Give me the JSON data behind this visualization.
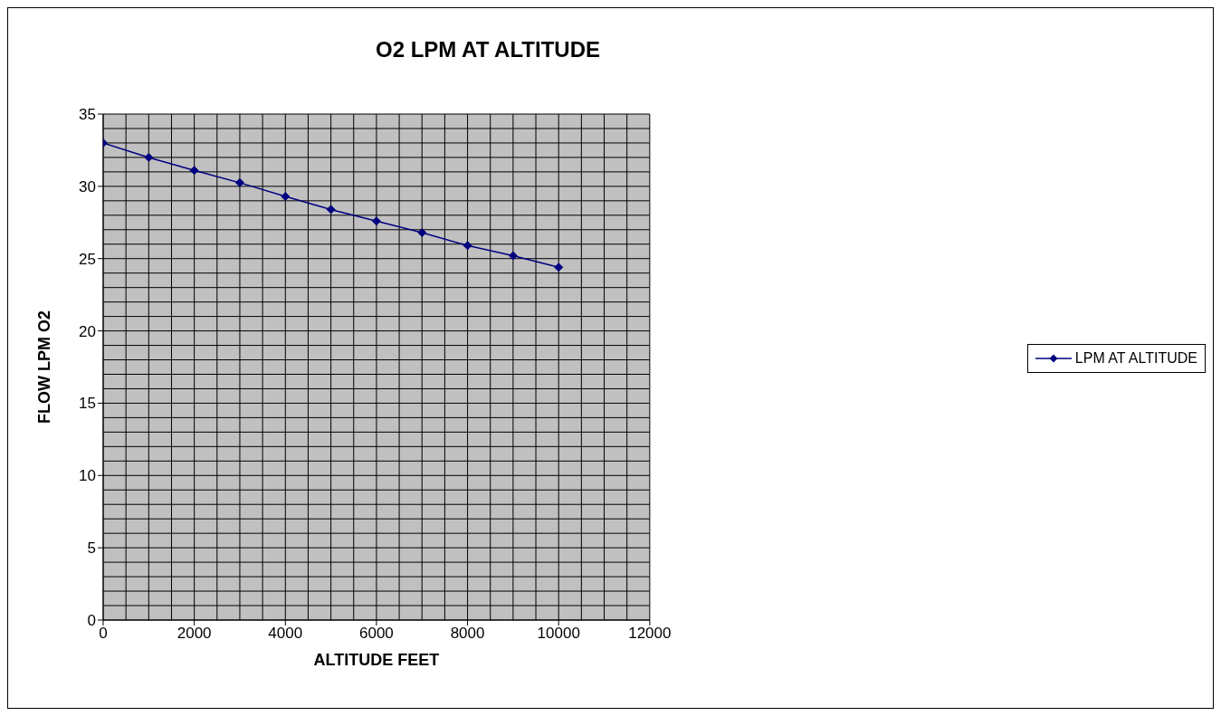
{
  "chart_data": {
    "type": "line",
    "title": "O2 LPM AT ALTITUDE",
    "xlabel": "ALTITUDE FEET",
    "ylabel": "FLOW LPM O2",
    "x": [
      0,
      1000,
      2000,
      3000,
      4000,
      5000,
      6000,
      7000,
      8000,
      9000,
      10000
    ],
    "series": [
      {
        "name": "LPM AT ALTITUDE",
        "color": "#000080",
        "values": [
          33,
          32,
          31.1,
          30.25,
          29.3,
          28.4,
          27.6,
          26.8,
          25.9,
          25.2,
          24.4
        ]
      }
    ],
    "xlim": [
      0,
      12000
    ],
    "xticks": [
      0,
      2000,
      4000,
      6000,
      8000,
      10000,
      12000
    ],
    "ylim": [
      0,
      35
    ],
    "yticks": [
      0,
      5,
      10,
      15,
      20,
      25,
      30,
      35
    ],
    "grid": true,
    "legend": "right",
    "marker": "diamond",
    "line_style": "solid"
  }
}
